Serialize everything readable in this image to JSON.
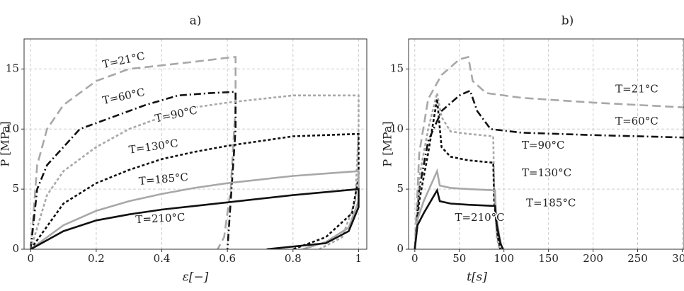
{
  "chart_data": [
    {
      "type": "line",
      "title": "a)",
      "xlabel": "ε[−]",
      "ylabel": "P [MPa]",
      "xlim": [
        -0.02,
        1.025
      ],
      "ylim": [
        0,
        17.5
      ],
      "xticks": [
        0,
        0.2,
        0.4,
        0.6,
        0.8,
        1
      ],
      "yticks": [
        0,
        5,
        10,
        15
      ],
      "grid": true,
      "series": [
        {
          "name": "T=21°C",
          "color": "#a8a8a8",
          "dash": "dashed",
          "x": [
            0,
            0.02,
            0.05,
            0.1,
            0.2,
            0.3,
            0.4,
            0.5,
            0.62,
            0.625,
            0.625,
            0.61,
            0.59,
            0.57
          ],
          "values": [
            0,
            7,
            10,
            12,
            14,
            15,
            15.3,
            15.6,
            16,
            16,
            12,
            5,
            1,
            0
          ]
        },
        {
          "name": "T=60°C",
          "color": "#111111",
          "dash": "dashdot",
          "x": [
            0,
            0.02,
            0.05,
            0.1,
            0.15,
            0.25,
            0.35,
            0.45,
            0.55,
            0.625,
            0.625,
            0.61,
            0.6
          ],
          "values": [
            0,
            5,
            7,
            8.5,
            10,
            11,
            12,
            12.8,
            13,
            13.1,
            10,
            4,
            0
          ]
        },
        {
          "name": "T=90°C",
          "color": "#a8a8a8",
          "dash": "dotted",
          "x": [
            0,
            0.05,
            0.1,
            0.2,
            0.3,
            0.4,
            0.5,
            0.6,
            0.8,
            1,
            1,
            0.99,
            0.95,
            0.88
          ],
          "values": [
            0,
            4.5,
            6.5,
            8.5,
            10,
            11,
            11.8,
            12.2,
            12.8,
            12.8,
            10,
            4,
            1,
            0
          ]
        },
        {
          "name": "T=130°C",
          "color": "#111111",
          "dash": "dotted",
          "x": [
            0,
            0.1,
            0.2,
            0.3,
            0.4,
            0.5,
            0.6,
            0.8,
            1,
            1,
            0.98,
            0.9,
            0.8
          ],
          "values": [
            0,
            3.8,
            5.5,
            6.6,
            7.5,
            8.1,
            8.6,
            9.4,
            9.6,
            6,
            3,
            1,
            0
          ]
        },
        {
          "name": "T=185°C",
          "color": "#a8a8a8",
          "dash": "solid",
          "x": [
            0,
            0.1,
            0.2,
            0.3,
            0.4,
            0.5,
            0.6,
            0.8,
            1,
            1,
            0.97,
            0.9,
            0.83
          ],
          "values": [
            0,
            2,
            3.2,
            4,
            4.6,
            5.1,
            5.5,
            6.1,
            6.5,
            4,
            1.8,
            0.6,
            0
          ]
        },
        {
          "name": "T=210°C",
          "color": "#111111",
          "dash": "solid",
          "x": [
            0,
            0.1,
            0.2,
            0.3,
            0.4,
            0.5,
            0.6,
            0.8,
            1,
            1,
            0.97,
            0.9,
            0.72
          ],
          "values": [
            0,
            1.5,
            2.4,
            2.9,
            3.3,
            3.6,
            3.9,
            4.5,
            5,
            3.5,
            1.5,
            0.5,
            0
          ]
        }
      ]
    },
    {
      "type": "line",
      "title": "b)",
      "xlabel": "t[s]",
      "ylabel": "P [MPa]",
      "xlim": [
        -7,
        302
      ],
      "ylim": [
        0,
        17.5
      ],
      "xticks": [
        0,
        50,
        100,
        150,
        200,
        250,
        300
      ],
      "yticks": [
        0,
        5,
        10,
        15
      ],
      "grid": true,
      "series": [
        {
          "name": "T=21°C",
          "color": "#a8a8a8",
          "dash": "dashed",
          "x": [
            0,
            5,
            15,
            30,
            50,
            60,
            65,
            80,
            120,
            200,
            302
          ],
          "values": [
            0,
            8,
            12.5,
            14.5,
            15.8,
            16,
            14,
            13,
            12.6,
            12.2,
            11.8
          ]
        },
        {
          "name": "T=60°C",
          "color": "#111111",
          "dash": "dashdot",
          "x": [
            0,
            5,
            15,
            30,
            50,
            62,
            70,
            85,
            120,
            200,
            302
          ],
          "values": [
            0,
            5,
            9,
            11.5,
            12.8,
            13.2,
            11.5,
            10,
            9.7,
            9.5,
            9.3
          ]
        },
        {
          "name": "T=90°C",
          "color": "#a8a8a8",
          "dash": "dotted",
          "x": [
            0,
            5,
            15,
            25,
            30,
            40,
            60,
            88,
            89,
            92,
            95
          ],
          "values": [
            0,
            6,
            10,
            13,
            11,
            9.8,
            9.6,
            9.4,
            5,
            1,
            0
          ]
        },
        {
          "name": "T=130°C",
          "color": "#111111",
          "dash": "dotted",
          "x": [
            0,
            5,
            15,
            25,
            30,
            40,
            60,
            88,
            89,
            93,
            96
          ],
          "values": [
            0,
            4,
            8,
            12.5,
            8.5,
            7.7,
            7.4,
            7.2,
            4,
            1,
            0
          ]
        },
        {
          "name": "T=185°C",
          "color": "#a8a8a8",
          "dash": "solid",
          "x": [
            0,
            3,
            10,
            25,
            28,
            40,
            60,
            90,
            91,
            95,
            98
          ],
          "values": [
            0,
            2.5,
            4,
            6.5,
            5.3,
            5.1,
            5,
            4.9,
            3,
            1,
            0
          ]
        },
        {
          "name": "T=210°C",
          "color": "#111111",
          "dash": "solid",
          "x": [
            0,
            3,
            10,
            25,
            28,
            40,
            60,
            90,
            92,
            96,
            99
          ],
          "values": [
            0,
            2,
            3,
            4.9,
            4,
            3.8,
            3.7,
            3.6,
            2,
            0.5,
            0
          ]
        }
      ]
    }
  ]
}
